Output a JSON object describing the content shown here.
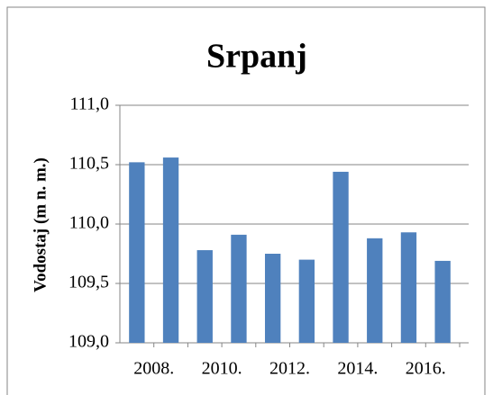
{
  "chart_data": {
    "type": "bar",
    "title": "Srpanj",
    "y_label": "Vodostaj (m n. m.)",
    "categories": [
      "2008.",
      null,
      "2010.",
      null,
      "2012.",
      null,
      "2014.",
      null,
      "2016.",
      null
    ],
    "values": [
      110.52,
      110.56,
      109.78,
      109.91,
      109.75,
      109.7,
      110.44,
      109.88,
      109.93,
      109.69
    ],
    "color": "#4f81bd",
    "ylim": [
      109,
      111
    ],
    "yticks": [
      {
        "value": 109,
        "label": "109,0"
      },
      {
        "value": 109.5,
        "label": "109,5"
      },
      {
        "value": 110,
        "label": "110,0"
      },
      {
        "value": 110.5,
        "label": "110,5"
      },
      {
        "value": 111,
        "label": "111,0"
      }
    ],
    "grid": true
  }
}
